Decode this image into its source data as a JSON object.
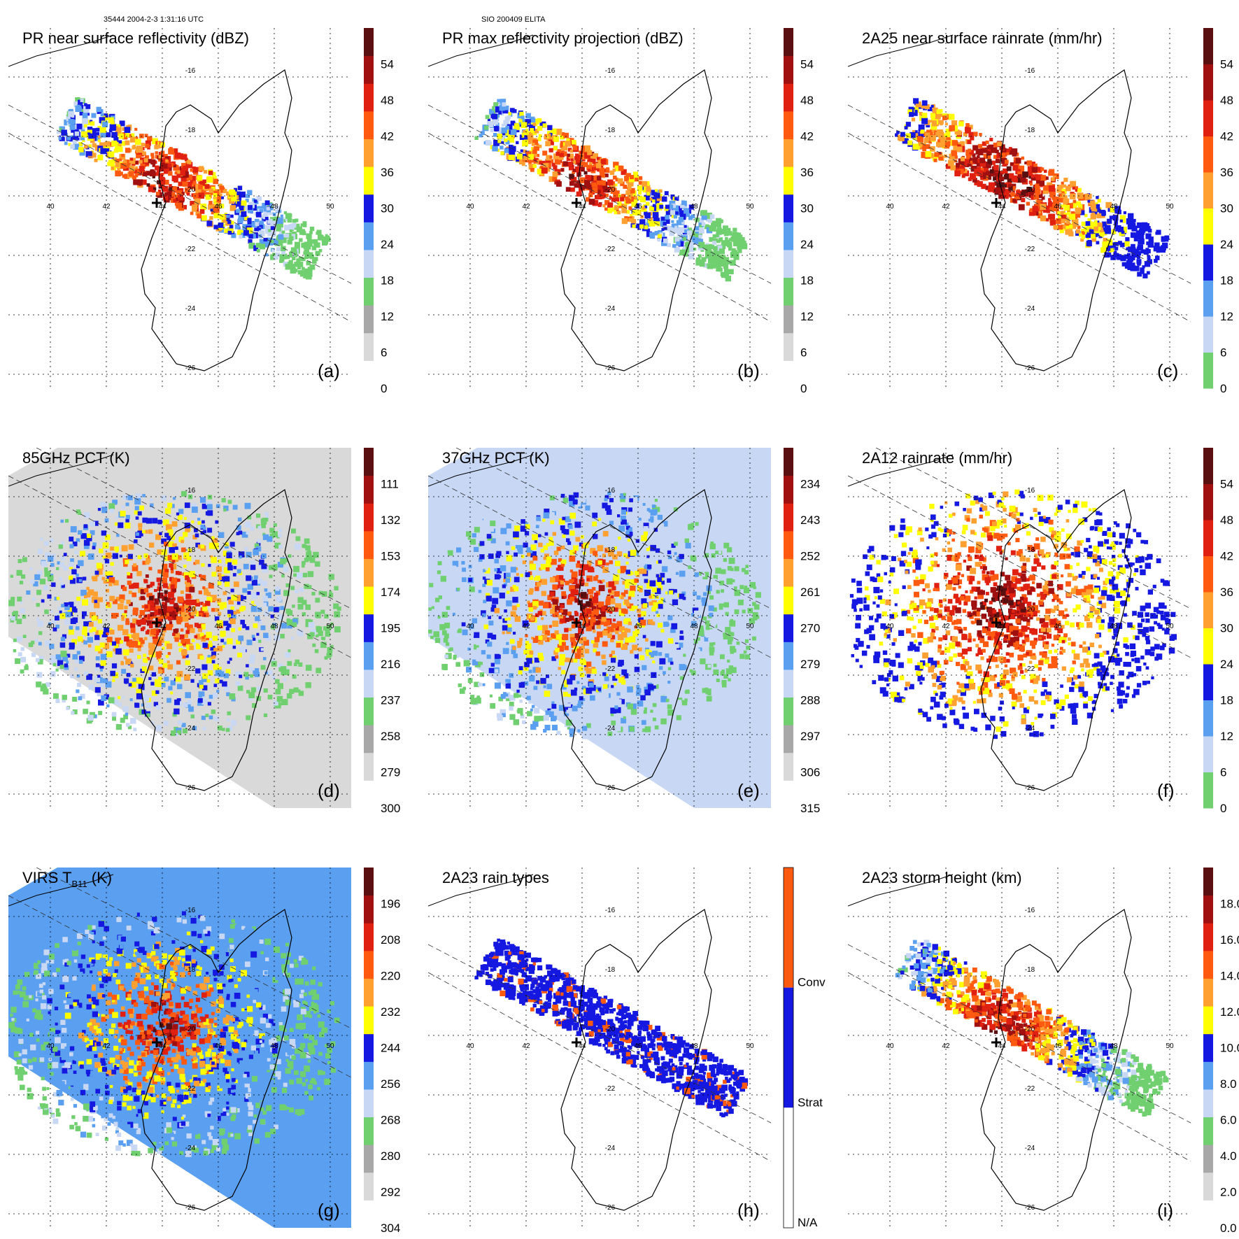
{
  "header": {
    "left": "35444 2004-2-3 1:31:16 UTC",
    "center": "SIO 200409 ELITA"
  },
  "colors": {
    "n0": "#ffffff",
    "n1": "#d9d9d9",
    "n2": "#a8a8a8",
    "g": "#70d070",
    "lb": "#c8d8f4",
    "mb": "#5a9ff0",
    "db": "#1418e0",
    "y": "#ffff00",
    "o1": "#ffa030",
    "o2": "#ff5a10",
    "r1": "#e02010",
    "r2": "#a01010",
    "dr": "#5a1010"
  },
  "lon_ticks": [
    "40",
    "42",
    "44",
    "46",
    "48",
    "50"
  ],
  "lat_ticks": [
    "-16",
    "-18",
    "-20",
    "-22",
    "-24",
    "-26"
  ],
  "panels": [
    {
      "id": "a",
      "title": "PR near surface reflectivity (dBZ)",
      "letter": "(a)",
      "cbar_labels": [
        "0",
        "6",
        "12",
        "18",
        "24",
        "30",
        "36",
        "42",
        "48",
        "54"
      ],
      "swath": "narrow",
      "palette": "refl"
    },
    {
      "id": "b",
      "title": "PR max reflectivity projection (dBZ)",
      "letter": "(b)",
      "cbar_labels": [
        "0",
        "6",
        "12",
        "18",
        "24",
        "30",
        "36",
        "42",
        "48",
        "54"
      ],
      "swath": "narrow",
      "palette": "refl"
    },
    {
      "id": "c",
      "title": "2A25 near surface rainrate (mm/hr)",
      "letter": "(c)",
      "cbar_labels": [
        "0",
        "6",
        "12",
        "18",
        "24",
        "30",
        "36",
        "42",
        "48",
        "54"
      ],
      "swath": "narrow",
      "palette": "rain"
    },
    {
      "id": "d",
      "title": "85GHz PCT (K)",
      "letter": "(d)",
      "cbar_labels": [
        "300",
        "279",
        "258",
        "237",
        "216",
        "195",
        "174",
        "153",
        "132",
        "111"
      ],
      "swath": "wide",
      "palette": "pct85"
    },
    {
      "id": "e",
      "title": "37GHz PCT (K)",
      "letter": "(e)",
      "cbar_labels": [
        "315",
        "306",
        "297",
        "288",
        "279",
        "270",
        "261",
        "252",
        "243",
        "234"
      ],
      "swath": "wide",
      "palette": "pct37"
    },
    {
      "id": "f",
      "title": "2A12 rainrate (mm/hr)",
      "letter": "(f)",
      "cbar_labels": [
        "0",
        "6",
        "12",
        "18",
        "24",
        "30",
        "36",
        "42",
        "48",
        "54"
      ],
      "swath": "wide",
      "palette": "rain"
    },
    {
      "id": "g",
      "title": "VIRS T",
      "title_sub": "B11",
      "title_tail": " (K)",
      "letter": "(g)",
      "cbar_labels": [
        "304",
        "292",
        "280",
        "268",
        "256",
        "244",
        "232",
        "220",
        "208",
        "196"
      ],
      "swath": "wide",
      "palette": "virs"
    },
    {
      "id": "h",
      "title": "2A23 rain types",
      "letter": "(h)",
      "cbar_labels": [
        "N/A",
        "Strat",
        "Conv"
      ],
      "swath": "narrow",
      "palette": "type"
    },
    {
      "id": "i",
      "title": "2A23 storm height (km)",
      "letter": "(i)",
      "cbar_labels": [
        "0.0",
        "2.0",
        "4.0",
        "6.0",
        "8.0",
        "10.0",
        "12.0",
        "14.0",
        "16.0",
        "18.0"
      ],
      "swath": "narrow",
      "palette": "hgt"
    }
  ]
}
